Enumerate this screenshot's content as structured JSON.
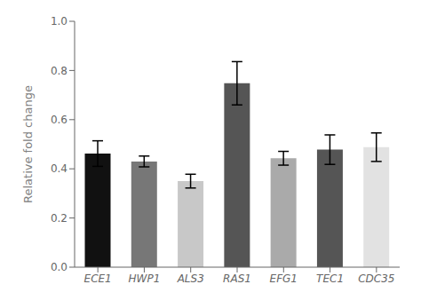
{
  "chart_data": {
    "type": "bar",
    "ylabel": "Relative fold change",
    "categories": [
      "ECE1",
      "HWP1",
      "ALS3",
      "RAS1",
      "EFG1",
      "TEC1",
      "CDC35"
    ],
    "values": [
      0.462,
      0.43,
      0.35,
      0.748,
      0.443,
      0.478,
      0.488
    ],
    "errors": [
      0.052,
      0.022,
      0.028,
      0.088,
      0.028,
      0.06,
      0.058
    ],
    "colors": [
      "#111111",
      "#777777",
      "#c8c8c8",
      "#555555",
      "#aaaaaa",
      "#555555",
      "#e2e2e2"
    ],
    "ylim": [
      0.0,
      1.0
    ],
    "yticks": [
      {
        "value": 0.0,
        "label": "0.0"
      },
      0.2,
      0.4,
      0.6,
      0.8,
      {
        "value": 1.0,
        "label": "1.0"
      }
    ],
    "grid": false
  }
}
